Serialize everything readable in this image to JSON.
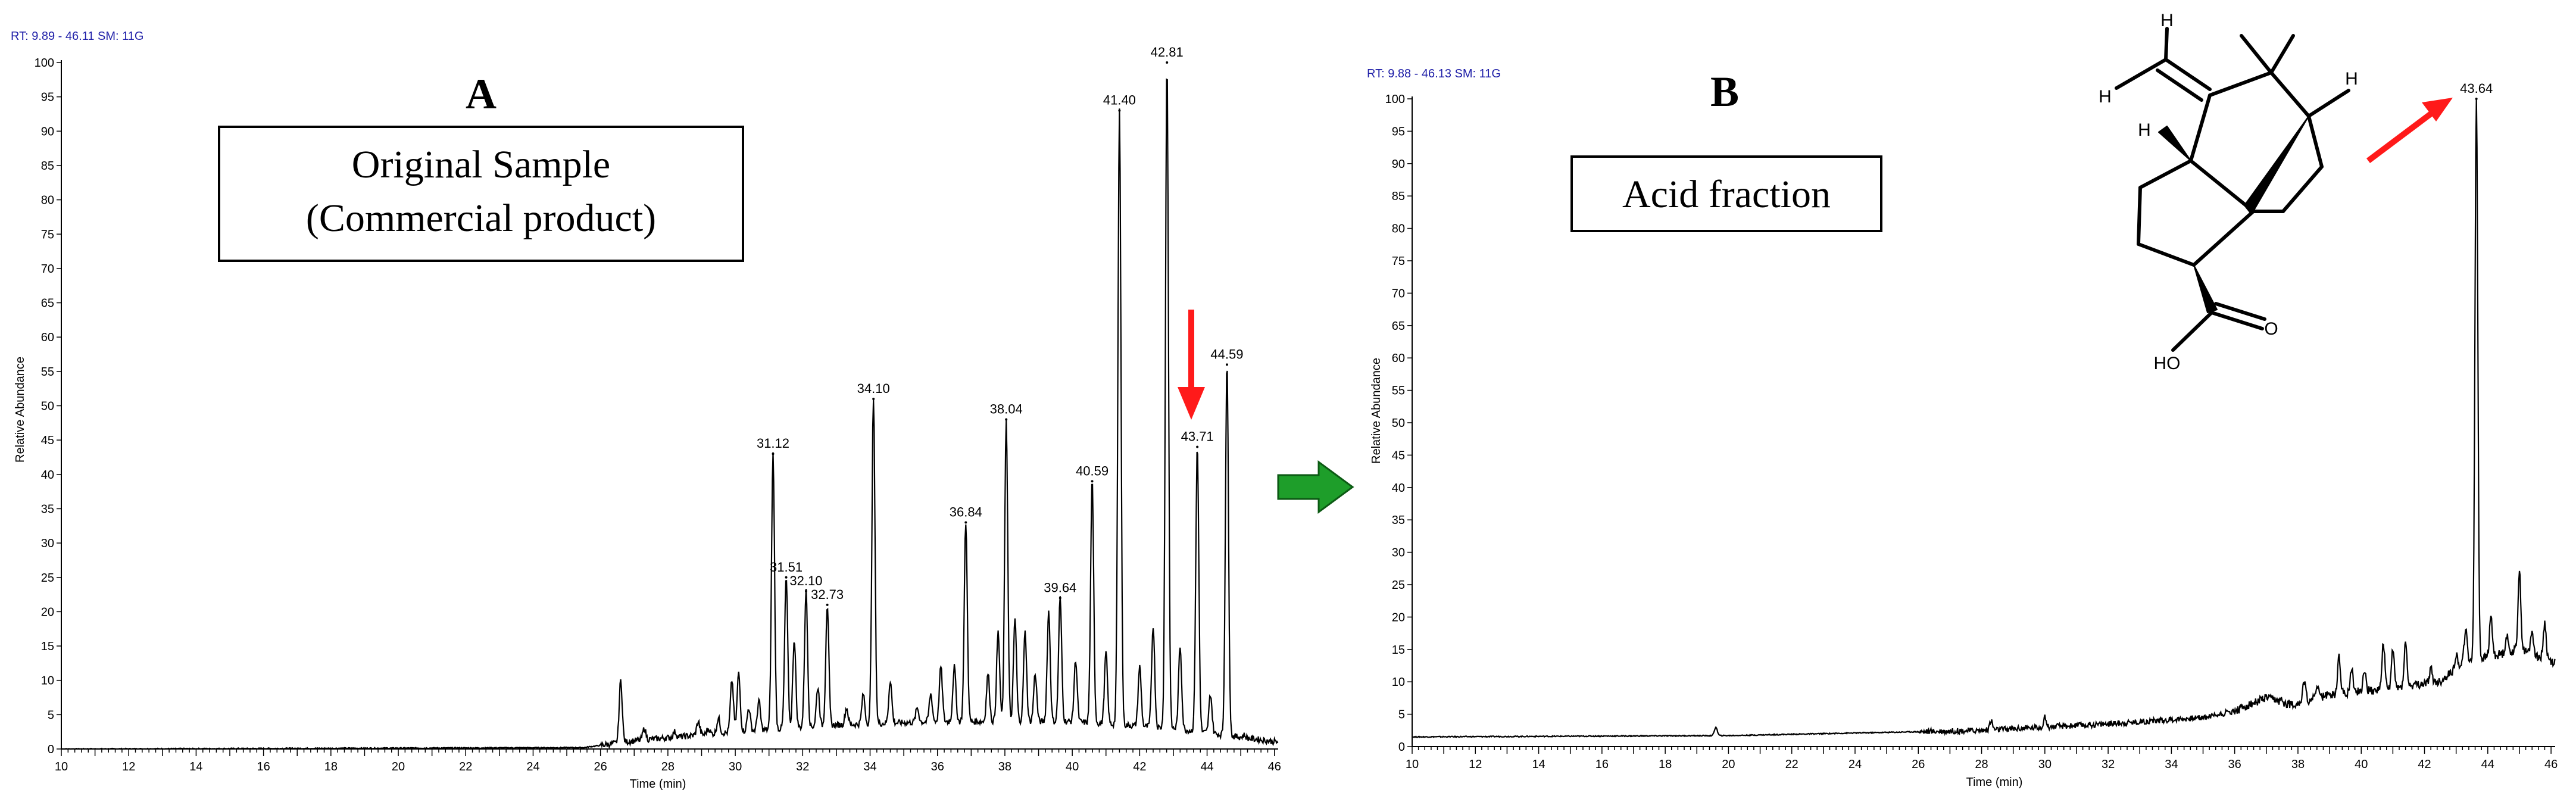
{
  "figure": {
    "arrow_color": "#1e9e2a",
    "accent_color": "#ff1a1a",
    "structure_atoms": [
      "H",
      "H",
      "H",
      "H",
      "O",
      "HO"
    ]
  },
  "chart_data": [
    {
      "type": "line",
      "panel": "A",
      "header": "RT: 9.89 - 46.11  SM: 11G",
      "boxed_title": [
        "Original Sample",
        "(Commercial product)"
      ],
      "xlabel": "Time (min)",
      "ylabel": "Relative Abundance",
      "xlim": [
        10,
        46.11
      ],
      "ylim": [
        0,
        100
      ],
      "x_ticks": [
        10,
        12,
        14,
        16,
        18,
        20,
        22,
        24,
        26,
        28,
        30,
        32,
        34,
        36,
        38,
        40,
        42,
        44,
        46
      ],
      "y_ticks": [
        0,
        5,
        10,
        15,
        20,
        25,
        30,
        35,
        40,
        45,
        50,
        55,
        60,
        65,
        70,
        75,
        80,
        85,
        90,
        95,
        100
      ],
      "peaks": [
        {
          "x": 26.6,
          "y": 10
        },
        {
          "x": 27.3,
          "y": 3
        },
        {
          "x": 28.2,
          "y": 2.5
        },
        {
          "x": 28.9,
          "y": 4
        },
        {
          "x": 29.2,
          "y": 3
        },
        {
          "x": 29.5,
          "y": 4.5
        },
        {
          "x": 29.9,
          "y": 10
        },
        {
          "x": 30.1,
          "y": 11
        },
        {
          "x": 30.4,
          "y": 6
        },
        {
          "x": 30.7,
          "y": 7
        },
        {
          "x": 31.12,
          "y": 43
        },
        {
          "x": 31.51,
          "y": 25
        },
        {
          "x": 31.75,
          "y": 16
        },
        {
          "x": 32.1,
          "y": 23
        },
        {
          "x": 32.45,
          "y": 9
        },
        {
          "x": 32.73,
          "y": 21
        },
        {
          "x": 33.3,
          "y": 6
        },
        {
          "x": 33.8,
          "y": 8
        },
        {
          "x": 34.1,
          "y": 51
        },
        {
          "x": 34.6,
          "y": 10
        },
        {
          "x": 35.4,
          "y": 6
        },
        {
          "x": 35.8,
          "y": 8
        },
        {
          "x": 36.1,
          "y": 12
        },
        {
          "x": 36.5,
          "y": 12
        },
        {
          "x": 36.84,
          "y": 33
        },
        {
          "x": 37.5,
          "y": 11
        },
        {
          "x": 37.8,
          "y": 17
        },
        {
          "x": 38.04,
          "y": 48
        },
        {
          "x": 38.3,
          "y": 19
        },
        {
          "x": 38.6,
          "y": 17
        },
        {
          "x": 38.9,
          "y": 11
        },
        {
          "x": 39.3,
          "y": 20
        },
        {
          "x": 39.64,
          "y": 22
        },
        {
          "x": 40.1,
          "y": 13
        },
        {
          "x": 40.59,
          "y": 39
        },
        {
          "x": 41.0,
          "y": 14
        },
        {
          "x": 41.4,
          "y": 93
        },
        {
          "x": 42.0,
          "y": 12
        },
        {
          "x": 42.4,
          "y": 18
        },
        {
          "x": 42.81,
          "y": 100
        },
        {
          "x": 43.2,
          "y": 15
        },
        {
          "x": 43.71,
          "y": 44
        },
        {
          "x": 44.1,
          "y": 8
        },
        {
          "x": 44.59,
          "y": 56
        },
        {
          "x": 45.1,
          "y": 2
        }
      ],
      "labeled_peaks": [
        {
          "x": 31.12,
          "y": 43,
          "label": "31.12"
        },
        {
          "x": 31.51,
          "y": 25,
          "label": "31.51"
        },
        {
          "x": 32.1,
          "y": 23,
          "label": "32.10"
        },
        {
          "x": 32.73,
          "y": 21,
          "label": "32.73"
        },
        {
          "x": 34.1,
          "y": 51,
          "label": "34.10"
        },
        {
          "x": 36.84,
          "y": 33,
          "label": "36.84"
        },
        {
          "x": 38.04,
          "y": 48,
          "label": "38.04"
        },
        {
          "x": 39.64,
          "y": 22,
          "label": "39.64"
        },
        {
          "x": 40.59,
          "y": 39,
          "label": "40.59"
        },
        {
          "x": 41.4,
          "y": 93,
          "label": "41.40"
        },
        {
          "x": 42.81,
          "y": 100,
          "label": "42.81"
        },
        {
          "x": 43.71,
          "y": 44,
          "label": "43.71"
        },
        {
          "x": 44.59,
          "y": 56,
          "label": "44.59"
        }
      ],
      "baseline": [
        [
          10,
          0
        ],
        [
          25.5,
          0.2
        ],
        [
          27,
          1.2
        ],
        [
          30,
          2.5
        ],
        [
          33,
          3.5
        ],
        [
          36,
          4
        ],
        [
          40,
          4
        ],
        [
          43,
          3
        ],
        [
          46.11,
          1
        ]
      ]
    },
    {
      "type": "line",
      "panel": "B",
      "header": "RT: 9.88 - 46.13  SM: 11G",
      "boxed_title": [
        "Acid fraction"
      ],
      "xlabel": "Time (min)",
      "ylabel": "Relative Abundance",
      "xlim": [
        10,
        46.13
      ],
      "ylim": [
        0,
        100
      ],
      "x_ticks": [
        10,
        12,
        14,
        16,
        18,
        20,
        22,
        24,
        26,
        28,
        30,
        32,
        34,
        36,
        38,
        40,
        42,
        44,
        46
      ],
      "y_ticks": [
        0,
        5,
        10,
        15,
        20,
        25,
        30,
        35,
        40,
        45,
        50,
        55,
        60,
        65,
        70,
        75,
        80,
        85,
        90,
        95,
        100
      ],
      "peaks": [
        {
          "x": 19.6,
          "y": 3
        },
        {
          "x": 28.3,
          "y": 4
        },
        {
          "x": 30,
          "y": 4.5
        },
        {
          "x": 38.2,
          "y": 10
        },
        {
          "x": 38.6,
          "y": 9.5
        },
        {
          "x": 39.3,
          "y": 14
        },
        {
          "x": 39.7,
          "y": 12
        },
        {
          "x": 40.1,
          "y": 12
        },
        {
          "x": 40.7,
          "y": 16
        },
        {
          "x": 41.0,
          "y": 15
        },
        {
          "x": 41.4,
          "y": 16
        },
        {
          "x": 42.2,
          "y": 12
        },
        {
          "x": 43.0,
          "y": 14
        },
        {
          "x": 43.3,
          "y": 18
        },
        {
          "x": 43.64,
          "y": 100
        },
        {
          "x": 44.1,
          "y": 20
        },
        {
          "x": 44.6,
          "y": 17
        },
        {
          "x": 45.0,
          "y": 27
        },
        {
          "x": 45.4,
          "y": 18
        },
        {
          "x": 45.8,
          "y": 19
        }
      ],
      "labeled_peaks": [
        {
          "x": 43.64,
          "y": 100,
          "label": "43.64"
        }
      ],
      "baseline": [
        [
          10,
          1.5
        ],
        [
          20,
          1.7
        ],
        [
          28,
          2.5
        ],
        [
          32,
          3.5
        ],
        [
          35,
          4.5
        ],
        [
          36,
          5.5
        ],
        [
          37,
          7.5
        ],
        [
          37.8,
          6.5
        ],
        [
          39,
          8
        ],
        [
          41,
          9
        ],
        [
          42.5,
          10
        ],
        [
          43.2,
          13
        ],
        [
          44.2,
          14
        ],
        [
          45,
          15
        ],
        [
          46.13,
          13
        ]
      ]
    }
  ]
}
